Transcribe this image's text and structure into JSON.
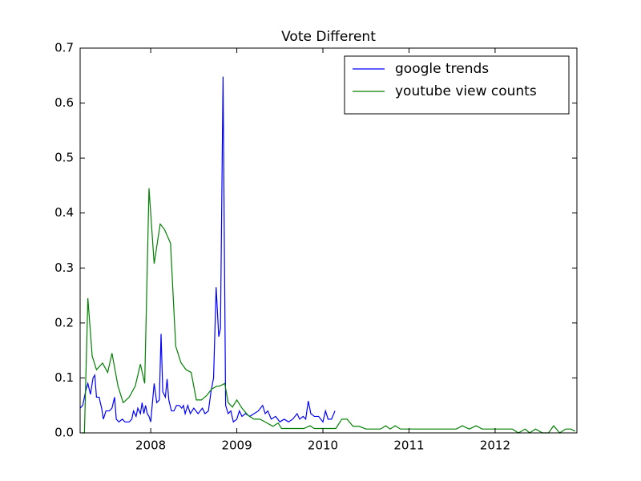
{
  "chart_data": {
    "type": "line",
    "title": "Vote Different",
    "xlim": [
      2007.18,
      2012.95
    ],
    "xticks": [
      2008,
      2009,
      2010,
      2011,
      2012
    ],
    "ylim": [
      0,
      0.7
    ],
    "yticks": [
      {
        "value": 0,
        "label": "0.0"
      },
      0.1,
      0.2,
      0.3,
      0.4,
      0.5,
      0.6,
      0.7
    ],
    "legend": "upper right",
    "series": [
      {
        "name": "google trends",
        "color": "#0000ff",
        "x": [
          2007.18,
          2007.21,
          2007.25,
          2007.27,
          2007.3,
          2007.33,
          2007.35,
          2007.37,
          2007.4,
          2007.43,
          2007.45,
          2007.48,
          2007.52,
          2007.55,
          2007.58,
          2007.6,
          2007.63,
          2007.67,
          2007.7,
          2007.75,
          2007.78,
          2007.8,
          2007.83,
          2007.85,
          2007.88,
          2007.9,
          2007.92,
          2007.94,
          2007.96,
          2007.98,
          2008.0,
          2008.04,
          2008.07,
          2008.1,
          2008.12,
          2008.14,
          2008.17,
          2008.19,
          2008.21,
          2008.24,
          2008.27,
          2008.3,
          2008.33,
          2008.36,
          2008.38,
          2008.4,
          2008.43,
          2008.46,
          2008.5,
          2008.55,
          2008.6,
          2008.63,
          2008.67,
          2008.7,
          2008.73,
          2008.76,
          2008.79,
          2008.81,
          2008.84,
          2008.87,
          2008.9,
          2008.93,
          2008.96,
          2009.0,
          2009.03,
          2009.06,
          2009.1,
          2009.15,
          2009.2,
          2009.25,
          2009.3,
          2009.33,
          2009.36,
          2009.4,
          2009.45,
          2009.5,
          2009.55,
          2009.6,
          2009.65,
          2009.7,
          2009.73,
          2009.77,
          2009.8,
          2009.83,
          2009.86,
          2009.9,
          2009.95,
          2010.0,
          2010.03,
          2010.06,
          2010.1,
          2010.14
        ],
        "values": [
          0.045,
          0.05,
          0.08,
          0.09,
          0.07,
          0.1,
          0.105,
          0.065,
          0.065,
          0.045,
          0.025,
          0.04,
          0.04,
          0.045,
          0.065,
          0.025,
          0.02,
          0.025,
          0.02,
          0.02,
          0.025,
          0.04,
          0.03,
          0.045,
          0.035,
          0.055,
          0.035,
          0.05,
          0.035,
          0.03,
          0.02,
          0.09,
          0.055,
          0.06,
          0.18,
          0.075,
          0.065,
          0.098,
          0.06,
          0.04,
          0.04,
          0.05,
          0.05,
          0.045,
          0.05,
          0.035,
          0.05,
          0.035,
          0.045,
          0.035,
          0.045,
          0.035,
          0.04,
          0.075,
          0.1,
          0.265,
          0.175,
          0.19,
          0.648,
          0.05,
          0.035,
          0.04,
          0.02,
          0.025,
          0.04,
          0.03,
          0.035,
          0.03,
          0.035,
          0.04,
          0.05,
          0.035,
          0.04,
          0.025,
          0.03,
          0.02,
          0.025,
          0.02,
          0.025,
          0.035,
          0.025,
          0.03,
          0.025,
          0.058,
          0.035,
          0.03,
          0.03,
          0.02,
          0.04,
          0.025,
          0.025,
          0.04
        ]
      },
      {
        "name": "youtube view counts",
        "color": "#008000",
        "x": [
          2007.2,
          2007.23,
          2007.27,
          2007.32,
          2007.37,
          2007.44,
          2007.5,
          2007.55,
          2007.62,
          2007.68,
          2007.75,
          2007.82,
          2007.88,
          2007.93,
          2007.98,
          2008.04,
          2008.11,
          2008.16,
          2008.23,
          2008.29,
          2008.35,
          2008.41,
          2008.47,
          2008.53,
          2008.59,
          2008.65,
          2008.71,
          2008.77,
          2008.8,
          2008.86,
          2008.9,
          2008.95,
          2009.0,
          2009.06,
          2009.13,
          2009.2,
          2009.27,
          2009.35,
          2009.42,
          2009.48,
          2009.52,
          2009.6,
          2009.7,
          2009.78,
          2009.85,
          2009.9,
          2010.0,
          2010.15,
          2010.22,
          2010.28,
          2010.35,
          2010.42,
          2010.5,
          2010.6,
          2010.67,
          2010.73,
          2010.78,
          2010.84,
          2010.9,
          2011.0,
          2011.2,
          2011.4,
          2011.55,
          2011.62,
          2011.7,
          2011.78,
          2011.85,
          2012.0,
          2012.2,
          2012.27,
          2012.35,
          2012.4,
          2012.47,
          2012.55,
          2012.62,
          2012.68,
          2012.75,
          2012.82,
          2012.88,
          2012.93
        ],
        "values": [
          0,
          0,
          0.245,
          0.14,
          0.115,
          0.127,
          0.11,
          0.145,
          0.085,
          0.055,
          0.065,
          0.085,
          0.125,
          0.09,
          0.445,
          0.308,
          0.38,
          0.37,
          0.345,
          0.158,
          0.128,
          0.115,
          0.11,
          0.06,
          0.06,
          0.068,
          0.08,
          0.085,
          0.085,
          0.09,
          0.055,
          0.047,
          0.06,
          0.045,
          0.032,
          0.025,
          0.025,
          0.018,
          0.012,
          0.018,
          0.008,
          0.008,
          0.008,
          0.008,
          0.013,
          0.008,
          0.008,
          0.008,
          0.025,
          0.025,
          0.012,
          0.012,
          0.007,
          0.007,
          0.007,
          0.013,
          0.007,
          0.013,
          0.007,
          0.007,
          0.007,
          0.007,
          0.007,
          0.013,
          0.007,
          0.013,
          0.007,
          0.007,
          0.007,
          0,
          0.007,
          0,
          0.007,
          0,
          0,
          0.013,
          0,
          0.007,
          0.007,
          0.003
        ]
      }
    ]
  }
}
